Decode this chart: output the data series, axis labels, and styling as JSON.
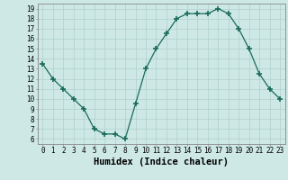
{
  "x": [
    0,
    1,
    2,
    3,
    4,
    5,
    6,
    7,
    8,
    9,
    10,
    11,
    12,
    13,
    14,
    15,
    16,
    17,
    18,
    19,
    20,
    21,
    22,
    23
  ],
  "y": [
    13.5,
    12.0,
    11.0,
    10.0,
    9.0,
    7.0,
    6.5,
    6.5,
    6.0,
    9.5,
    13.0,
    15.0,
    16.5,
    18.0,
    18.5,
    18.5,
    18.5,
    19.0,
    18.5,
    17.0,
    15.0,
    12.5,
    11.0,
    10.0
  ],
  "xlabel": "Humidex (Indice chaleur)",
  "line_color": "#1a6b5a",
  "marker": "+",
  "marker_size": 4,
  "bg_color": "#cde8e5",
  "grid_color": "#b0d0cc",
  "xlim": [
    -0.5,
    23.5
  ],
  "ylim": [
    5.5,
    19.5
  ],
  "yticks": [
    6,
    7,
    8,
    9,
    10,
    11,
    12,
    13,
    14,
    15,
    16,
    17,
    18,
    19
  ],
  "xticks": [
    0,
    1,
    2,
    3,
    4,
    5,
    6,
    7,
    8,
    9,
    10,
    11,
    12,
    13,
    14,
    15,
    16,
    17,
    18,
    19,
    20,
    21,
    22,
    23
  ],
  "tick_fontsize": 5.5,
  "xlabel_fontsize": 7.5
}
